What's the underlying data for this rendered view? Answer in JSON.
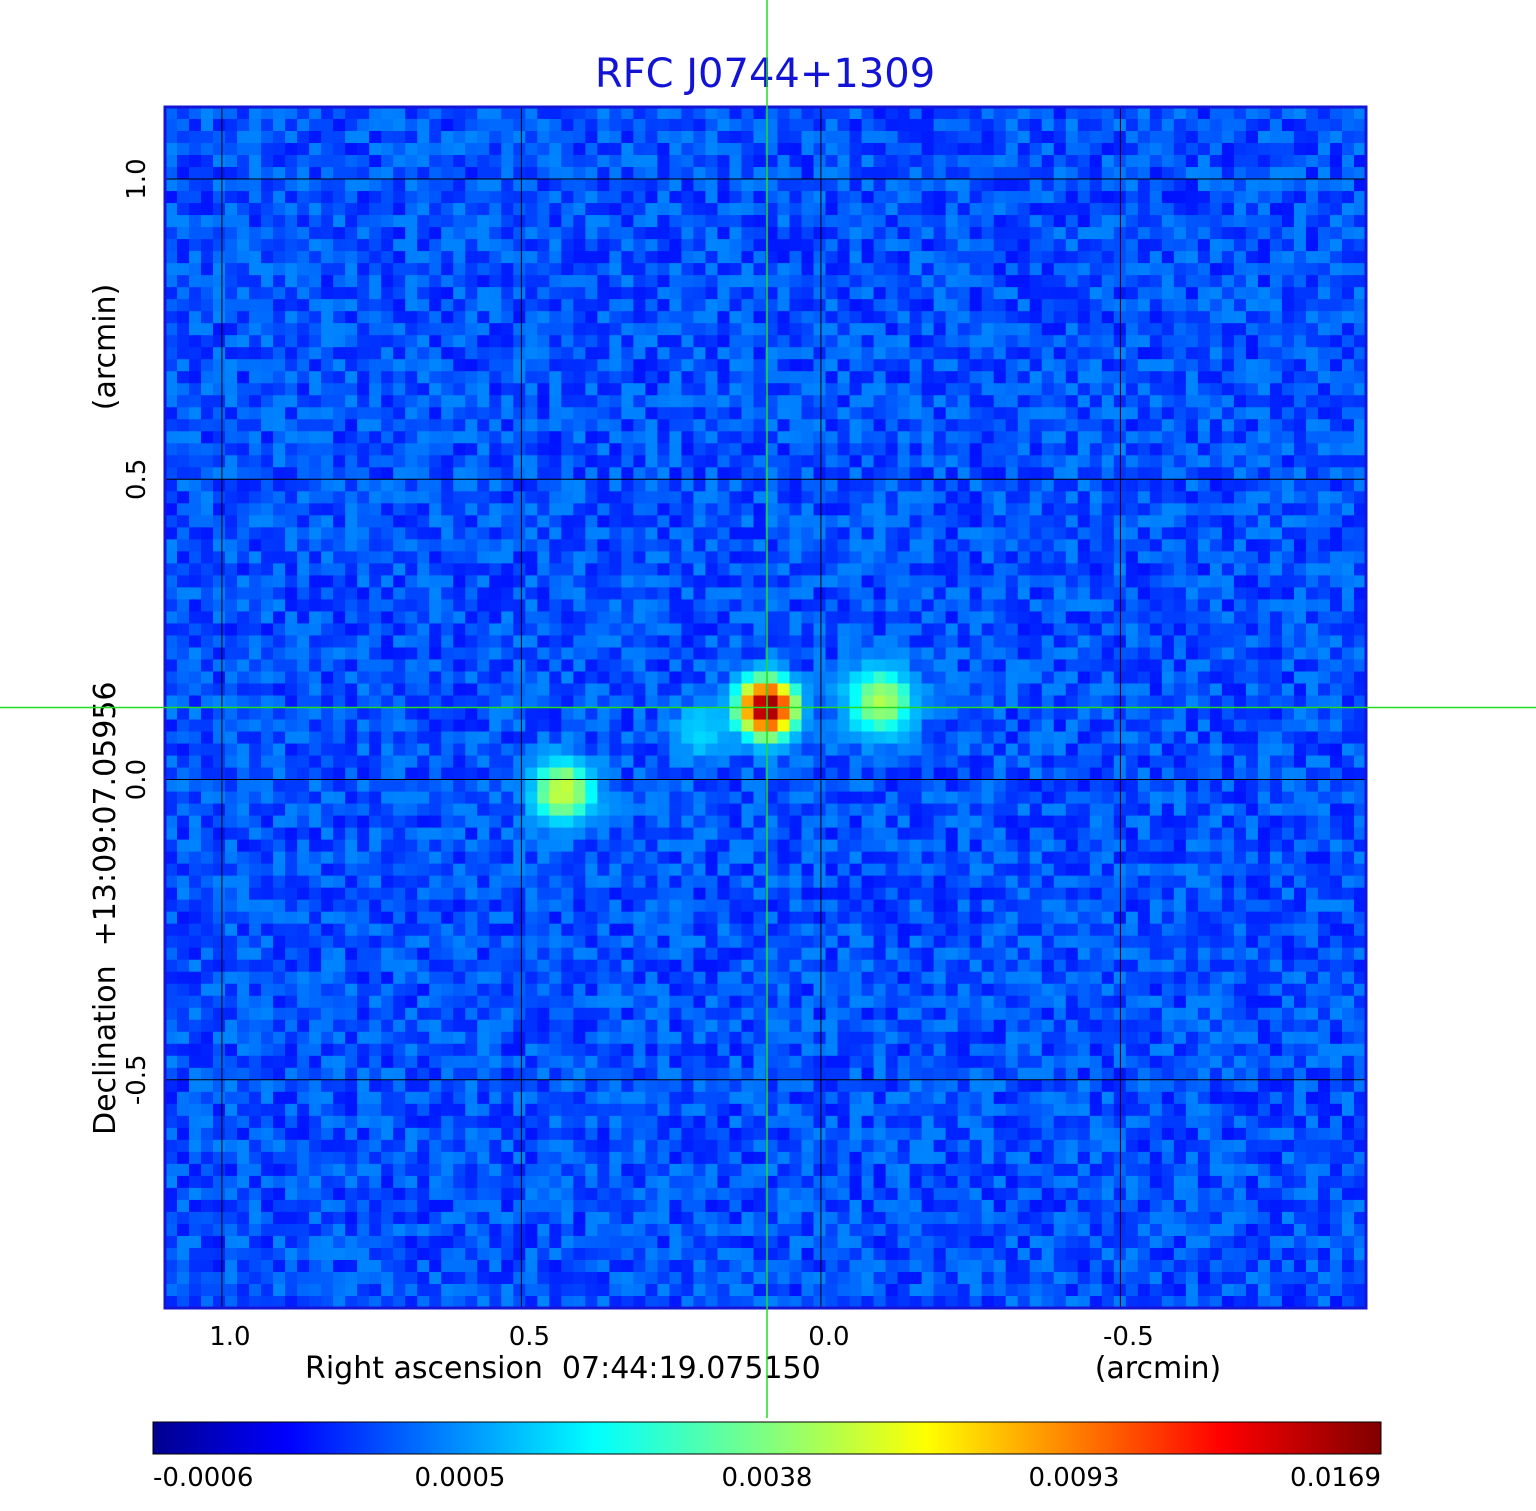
{
  "chart_data": {
    "type": "heatmap",
    "title": "RFC J0744+1309",
    "xlabel": "Right ascension  07:44:19.075150",
    "xunit": "(arcmin)",
    "ylabel": "Declination  +13:09:07.05956",
    "yunit": "(arcmin)",
    "xlim": [
      1.095,
      -0.91
    ],
    "ylim": [
      -0.88,
      1.12
    ],
    "x_ticks": [
      {
        "value": 1.0,
        "label": "1.0"
      },
      {
        "value": 0.5,
        "label": "0.5"
      },
      {
        "value": 0.0,
        "label": "0.0"
      },
      {
        "value": -0.5,
        "label": "-0.5"
      }
    ],
    "y_ticks": [
      {
        "value": 1.0,
        "label": "1.0"
      },
      {
        "value": 0.5,
        "label": "0.5"
      },
      {
        "value": 0.0,
        "label": "0.0"
      },
      {
        "value": -0.5,
        "label": "-0.5"
      }
    ],
    "grid": true,
    "crosshair": {
      "x": 0.09,
      "y": 0.12,
      "color": "#22dd22"
    },
    "background_level": 0.0003,
    "sources": [
      {
        "x": 0.09,
        "y": 0.12,
        "peak": 0.0169,
        "sigma": 0.028
      },
      {
        "x": -0.1,
        "y": 0.13,
        "peak": 0.0045,
        "sigma": 0.035
      },
      {
        "x": 0.43,
        "y": -0.02,
        "peak": 0.0052,
        "sigma": 0.032
      },
      {
        "x": 0.2,
        "y": 0.08,
        "peak": 0.0014,
        "sigma": 0.03
      }
    ],
    "colorbar": {
      "colormap": "jet",
      "tick_labels": [
        "-0.0006",
        "0.0005",
        "0.0038",
        "0.0093",
        "0.0169"
      ],
      "min": -0.0006,
      "max": 0.0169
    }
  }
}
